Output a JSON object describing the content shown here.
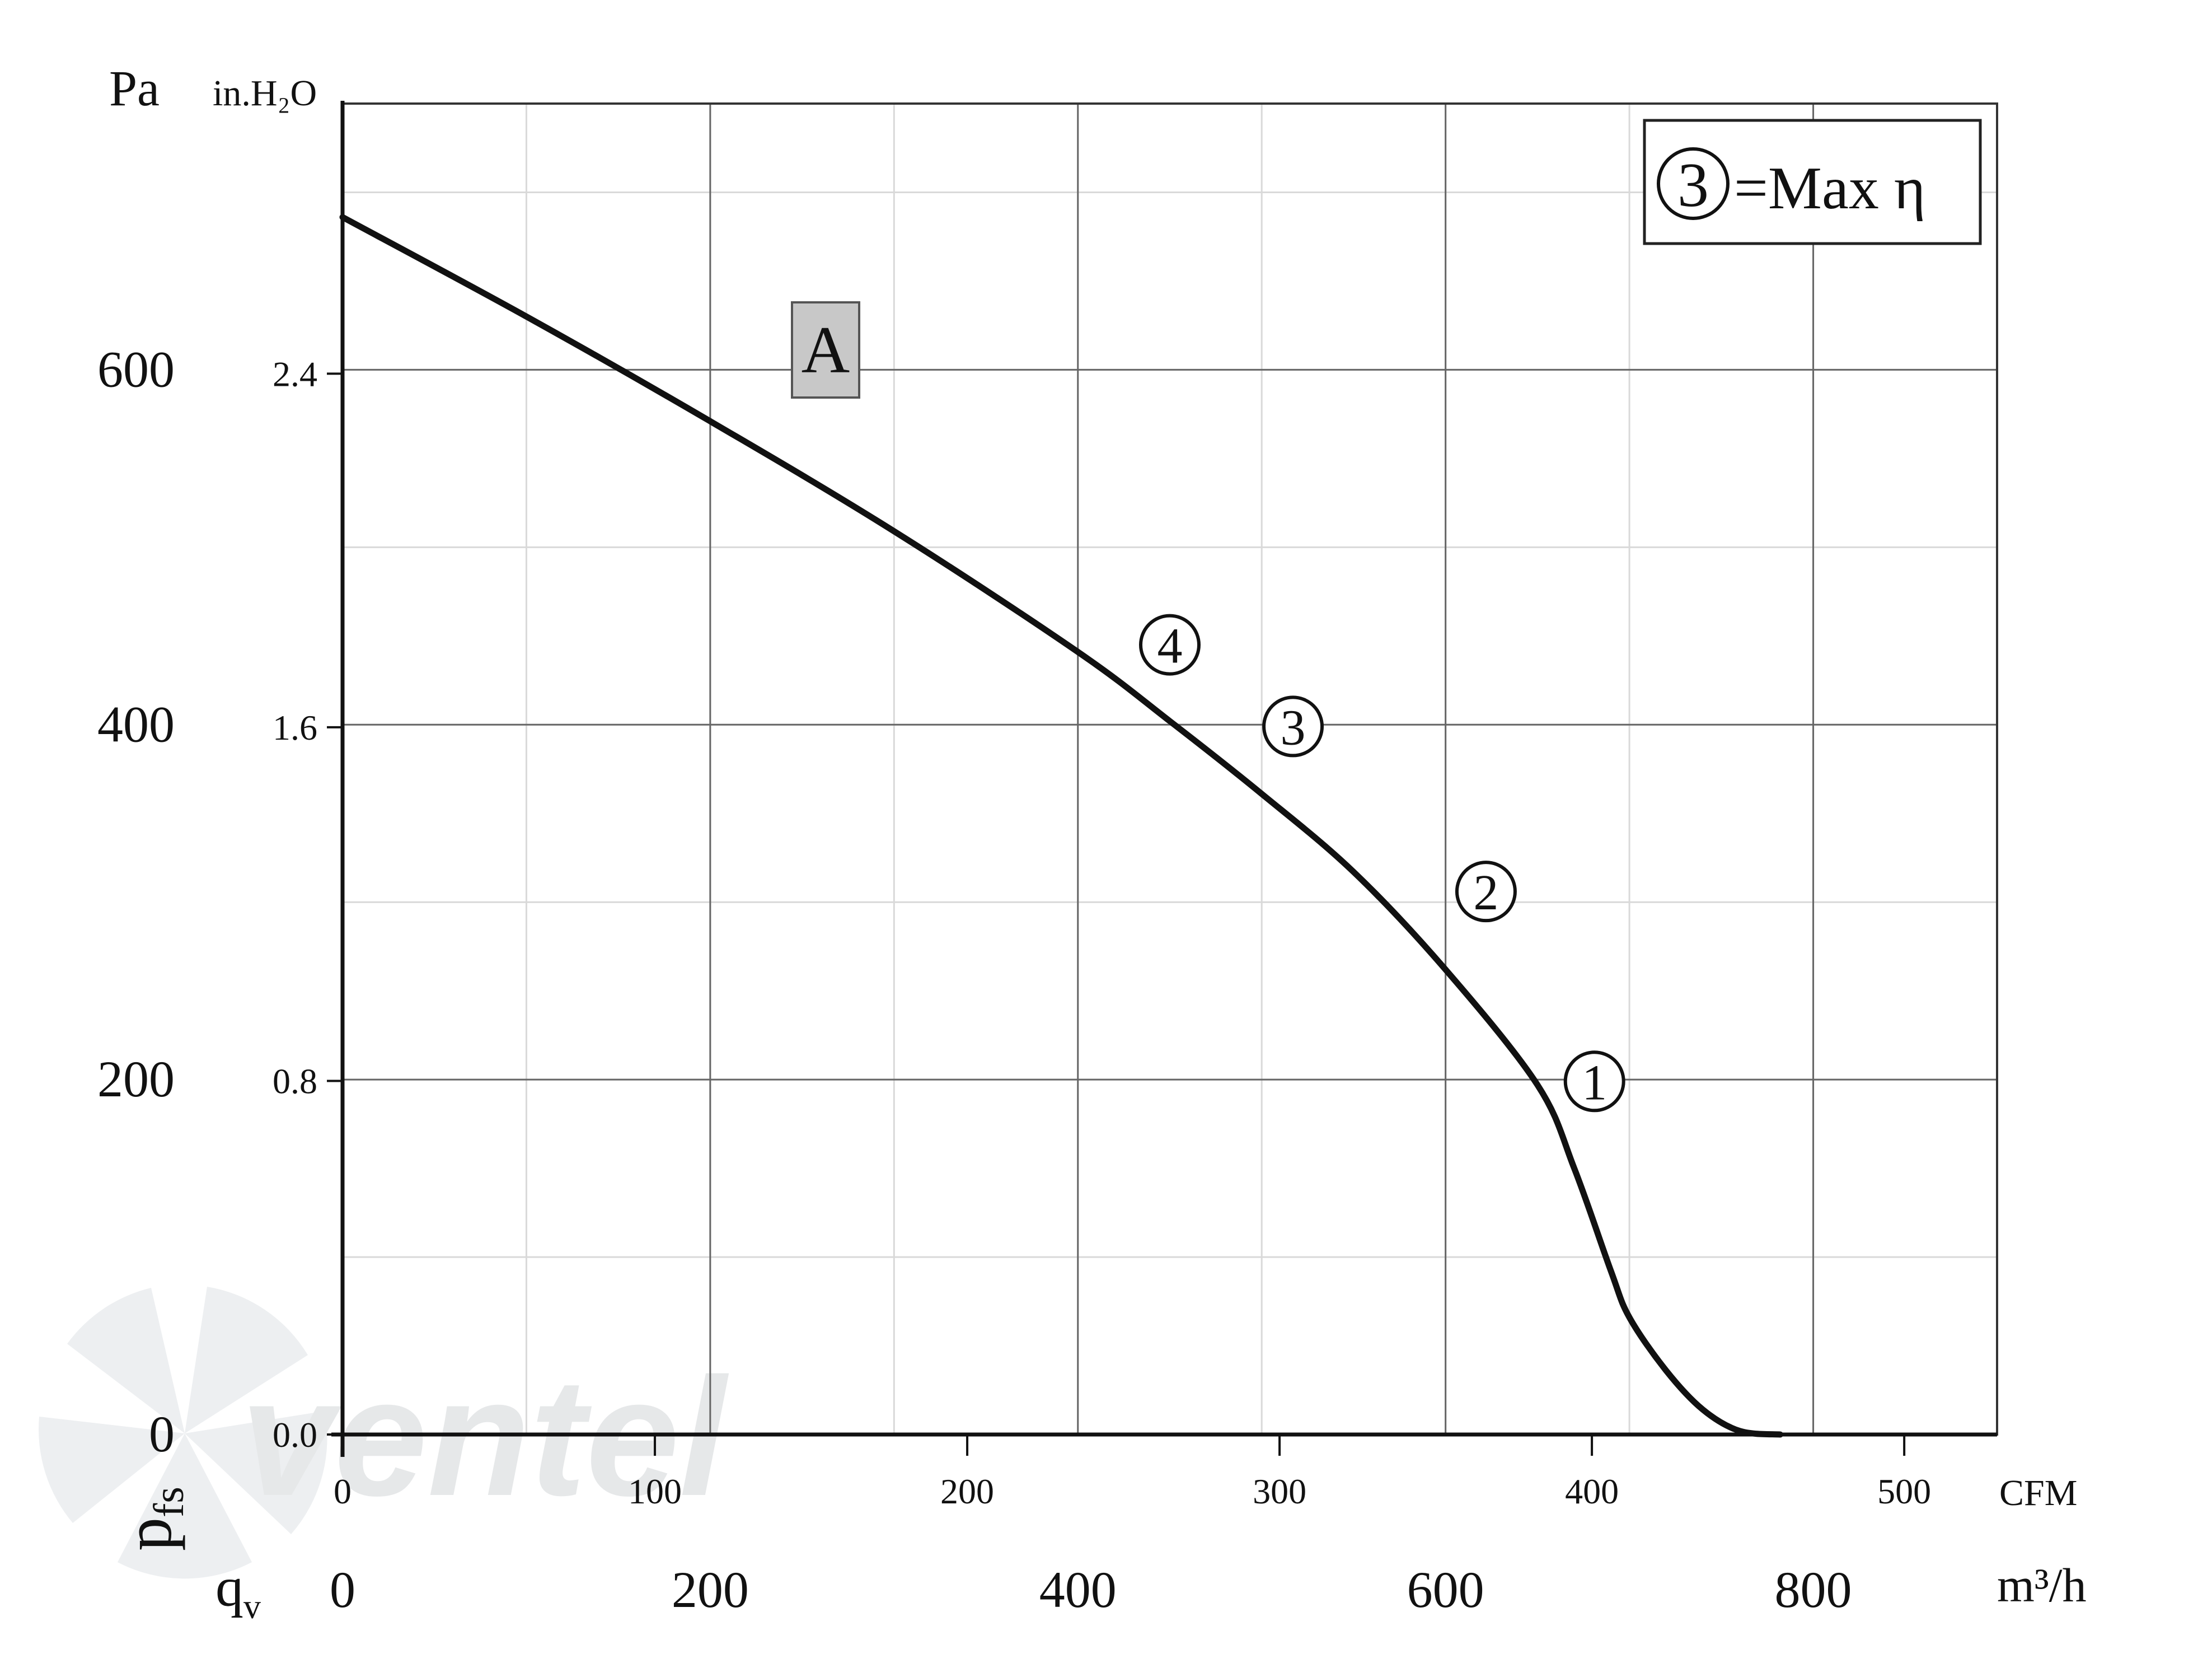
{
  "chart_data": {
    "type": "line",
    "legend_box": {
      "marker": "3",
      "text": "=Max η"
    },
    "curve_label": "A",
    "y_left_unit": "Pa",
    "y_right_unit": "in.H₂O",
    "y_axis_symbol": {
      "main": "p",
      "sub": "fs"
    },
    "x_axis_symbol": {
      "main": "q",
      "sub": "v"
    },
    "x_top_unit": "CFM",
    "x_bottom_unit": "m³/h",
    "pa_ticks": [
      {
        "value": 0,
        "label": "0"
      },
      {
        "value": 200,
        "label": "200"
      },
      {
        "value": 400,
        "label": "400"
      },
      {
        "value": 600,
        "label": "600"
      }
    ],
    "inh2o_ticks": [
      {
        "value": 0,
        "label": "0.0"
      },
      {
        "value": 0.8,
        "label": "0.8"
      },
      {
        "value": 1.6,
        "label": "1.6"
      },
      {
        "value": 2.4,
        "label": "2.4"
      }
    ],
    "cfm_ticks": [
      {
        "value": 0,
        "label": "0"
      },
      {
        "value": 100,
        "label": "100"
      },
      {
        "value": 200,
        "label": "200"
      },
      {
        "value": 300,
        "label": "300"
      },
      {
        "value": 400,
        "label": "400"
      },
      {
        "value": 500,
        "label": "500"
      }
    ],
    "m3h_ticks": [
      {
        "value": 0,
        "label": "0"
      },
      {
        "value": 200,
        "label": "200"
      },
      {
        "value": 400,
        "label": "400"
      },
      {
        "value": 600,
        "label": "600"
      },
      {
        "value": 800,
        "label": "800"
      }
    ],
    "xlim_m3h": [
      0,
      900
    ],
    "ylim_pa": [
      0,
      750
    ],
    "series": [
      {
        "x": [
          0,
          100,
          200,
          300,
          400,
          450,
          500,
          550,
          600,
          650,
          670,
          690,
          700,
          720,
          740,
          760,
          782
        ],
        "y": [
          686,
          630,
          571,
          509,
          441,
          402,
          361,
          317,
          262,
          197,
          150,
          92,
          66,
          36,
          14,
          2,
          0
        ]
      }
    ],
    "operating_points": [
      {
        "label": "4",
        "x": 450,
        "y": 445
      },
      {
        "label": "3",
        "x": 517,
        "y": 399
      },
      {
        "label": "2",
        "x": 622,
        "y": 306
      },
      {
        "label": "1",
        "x": 681,
        "y": 199
      }
    ],
    "grid": true,
    "watermark": "ventel"
  }
}
